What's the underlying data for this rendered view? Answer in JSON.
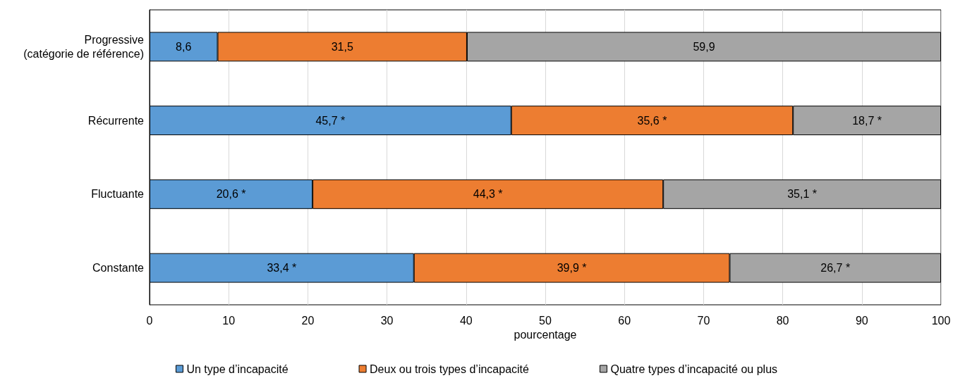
{
  "chart_data": {
    "type": "bar",
    "orientation": "horizontal",
    "stacked": true,
    "categories": [
      "Progressive\n(catégorie de référence)",
      "Récurrente",
      "Fluctuante",
      "Constante"
    ],
    "series": [
      {
        "name": "Un type d’incapacité",
        "color": "#5b9bd5",
        "values": [
          8.6,
          45.7,
          20.6,
          33.4
        ],
        "value_labels": [
          "8,6",
          "45,7 *",
          "20,6 *",
          "33,4 *"
        ]
      },
      {
        "name": "Deux ou trois types d’incapacité",
        "color": "#ed7d31",
        "values": [
          31.5,
          35.6,
          44.3,
          39.9
        ],
        "value_labels": [
          "31,5",
          "35,6 *",
          "44,3 *",
          "39,9 *"
        ]
      },
      {
        "name": "Quatre types d’incapacité ou plus",
        "color": "#a5a5a5",
        "values": [
          59.9,
          18.7,
          35.1,
          26.7
        ],
        "value_labels": [
          "59,9",
          "18,7 *",
          "35,1 *",
          "26,7 *"
        ]
      }
    ],
    "xlabel": "pourcentage",
    "xlim": [
      0,
      100
    ],
    "xticks": [
      0,
      10,
      20,
      30,
      40,
      50,
      60,
      70,
      80,
      90,
      100
    ],
    "grid": "x",
    "legend": "bottom"
  }
}
